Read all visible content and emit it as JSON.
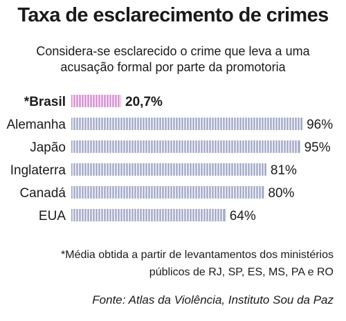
{
  "title": "Taxa de esclarecimento de crimes",
  "subtitle": "Considera-se esclarecido o crime que leva a uma acusação formal por parte da promotoria",
  "footnote": "*Média obtida a partir de levantamentos dos ministérios públicos de RJ, SP, ES, MS, PA e RO",
  "source": "Fonte: Atlas da Violência, Instituto Sou da Paz",
  "colors": {
    "highlight": "#d98bd2",
    "default": "#a3a9c8",
    "gap": "#ffffff"
  },
  "chart_data": {
    "type": "bar",
    "orientation": "horizontal",
    "categories": [
      "*Brasil",
      "Alemanha",
      "Japão",
      "Inglaterra",
      "Canadá",
      "EUA"
    ],
    "values": [
      20.7,
      96,
      95,
      81,
      80,
      64
    ],
    "value_labels": [
      "20,7%",
      "96%",
      "95%",
      "81%",
      "80%",
      "64%"
    ],
    "highlight": [
      true,
      false,
      false,
      false,
      false,
      false
    ],
    "xlim": [
      0,
      100
    ],
    "grid": false,
    "legend": "none"
  }
}
